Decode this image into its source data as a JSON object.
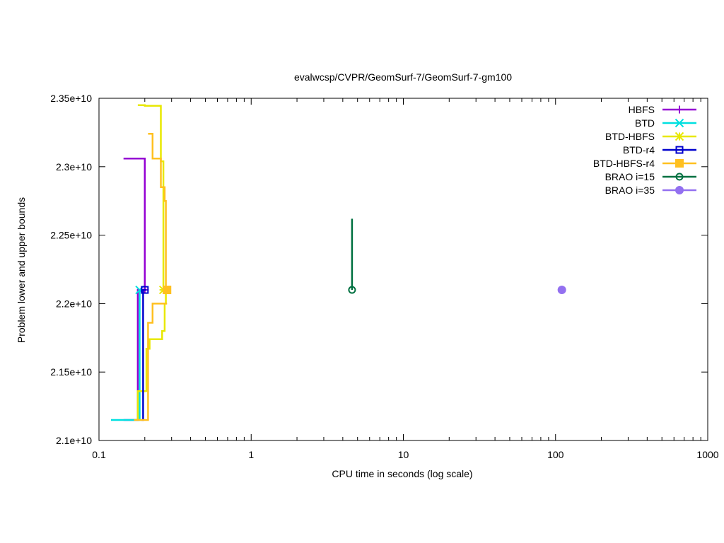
{
  "chart_data": {
    "type": "line",
    "title": "evalwcsp/CVPR/GeomSurf-7/GeomSurf-7-gm100",
    "xlabel": "CPU time in seconds (log scale)",
    "ylabel": "Problem lower and upper bounds",
    "xscale": "log",
    "xlim": [
      0.1,
      1000
    ],
    "ylim": [
      21000000000,
      23500000000
    ],
    "x_ticks": [
      {
        "value": 0.1,
        "label": "0.1"
      },
      {
        "value": 1,
        "label": "1"
      },
      {
        "value": 10,
        "label": "10"
      },
      {
        "value": 100,
        "label": "100"
      },
      {
        "value": 1000,
        "label": "1000"
      }
    ],
    "y_ticks": [
      {
        "value": 21000000000,
        "label": "2.1e+10"
      },
      {
        "value": 21500000000,
        "label": "2.15e+10"
      },
      {
        "value": 22000000000,
        "label": "2.2e+10"
      },
      {
        "value": 22500000000,
        "label": "2.25e+10"
      },
      {
        "value": 23000000000,
        "label": "2.3e+10"
      },
      {
        "value": 23500000000,
        "label": "2.35e+10"
      }
    ],
    "grid": false,
    "legend_position": "top-right",
    "series": [
      {
        "name": "HBFS",
        "color": "#9400d3",
        "marker": "plus",
        "lower": [
          [
            0.145,
            21150000000
          ],
          [
            0.18,
            21150000000
          ],
          [
            0.18,
            22100000000
          ],
          [
            0.2,
            22100000000
          ]
        ],
        "upper": [
          [
            0.145,
            23060000000
          ],
          [
            0.2,
            23060000000
          ],
          [
            0.2,
            22100000000
          ]
        ],
        "final": [
          0.2,
          22100000000
        ]
      },
      {
        "name": "BTD",
        "color": "#00e0e0",
        "marker": "x",
        "lower": [
          [
            0.12,
            21150000000
          ],
          [
            0.185,
            21150000000
          ],
          [
            0.185,
            22100000000
          ],
          [
            0.19,
            22100000000
          ]
        ],
        "upper": [
          [
            0.19,
            22100000000
          ]
        ],
        "final": [
          0.185,
          22100000000
        ]
      },
      {
        "name": "BTD-HBFS",
        "color": "#e8e800",
        "marker": "star",
        "lower": [
          [
            0.18,
            21150000000
          ],
          [
            0.18,
            21360000000
          ],
          [
            0.205,
            21360000000
          ],
          [
            0.205,
            21670000000
          ],
          [
            0.215,
            21670000000
          ],
          [
            0.215,
            21740000000
          ],
          [
            0.26,
            21740000000
          ],
          [
            0.26,
            21800000000
          ],
          [
            0.27,
            21800000000
          ],
          [
            0.27,
            22000000000
          ],
          [
            0.275,
            22000000000
          ],
          [
            0.275,
            22100000000
          ]
        ],
        "upper": [
          [
            0.18,
            23450000000
          ],
          [
            0.2,
            23450000000
          ],
          [
            0.2,
            23445000000
          ],
          [
            0.255,
            23445000000
          ],
          [
            0.255,
            23040000000
          ],
          [
            0.265,
            23040000000
          ],
          [
            0.265,
            22100000000
          ],
          [
            0.275,
            22100000000
          ]
        ],
        "final": [
          0.265,
          22100000000
        ]
      },
      {
        "name": "BTD-r4",
        "color": "#0000cd",
        "marker": "square-open",
        "lower": [
          [
            0.19,
            21150000000
          ],
          [
            0.195,
            21150000000
          ],
          [
            0.195,
            22100000000
          ],
          [
            0.205,
            22100000000
          ]
        ],
        "upper": [
          [
            0.205,
            22100000000
          ]
        ],
        "final": [
          0.2,
          22100000000
        ]
      },
      {
        "name": "BTD-HBFS-r4",
        "color": "#ffc020",
        "marker": "square-filled",
        "lower": [
          [
            0.17,
            21150000000
          ],
          [
            0.21,
            21150000000
          ],
          [
            0.21,
            21860000000
          ],
          [
            0.225,
            21860000000
          ],
          [
            0.225,
            22000000000
          ],
          [
            0.28,
            22000000000
          ]
        ],
        "upper": [
          [
            0.21,
            23240000000
          ],
          [
            0.225,
            23240000000
          ],
          [
            0.225,
            23060000000
          ],
          [
            0.255,
            23060000000
          ],
          [
            0.255,
            22850000000
          ],
          [
            0.27,
            22850000000
          ],
          [
            0.27,
            22750000000
          ],
          [
            0.275,
            22750000000
          ],
          [
            0.275,
            22100000000
          ],
          [
            0.285,
            22100000000
          ]
        ],
        "final": [
          0.28,
          22100000000
        ]
      },
      {
        "name": "BRAO i=15",
        "color": "#007040",
        "marker": "circle-open",
        "lower": [
          [
            4.6,
            22100000000
          ]
        ],
        "upper": [
          [
            4.6,
            22620000000
          ],
          [
            4.6,
            22100000000
          ]
        ],
        "final": [
          4.6,
          22100000000
        ]
      },
      {
        "name": "BRAO i=35",
        "color": "#9370f0",
        "marker": "circle-filled",
        "lower": [
          [
            110,
            22100000000
          ]
        ],
        "upper": [
          [
            110,
            22100000000
          ]
        ],
        "final": [
          110,
          22100000000
        ]
      }
    ]
  }
}
